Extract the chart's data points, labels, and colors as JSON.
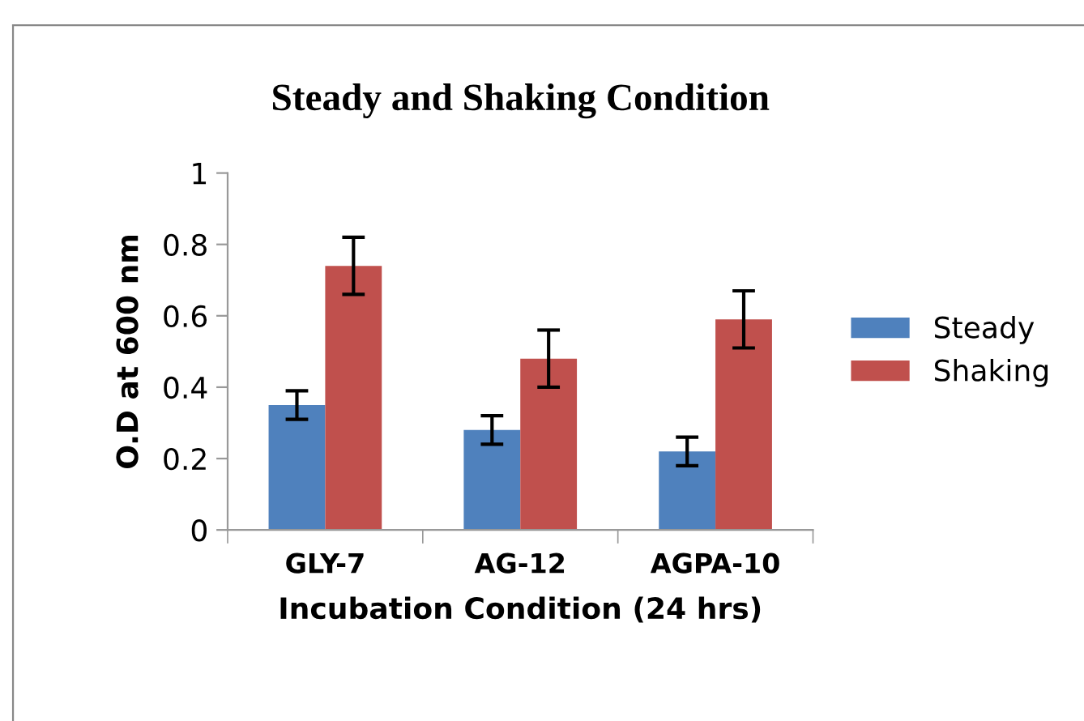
{
  "chart_data": {
    "type": "bar",
    "title": "Steady and Shaking Condition",
    "xlabel": "Incubation Condition (24 hrs)",
    "ylabel": "O.D at 600 nm",
    "categories": [
      "GLY-7",
      "AG-12",
      "AGPA-10"
    ],
    "series": [
      {
        "name": "Steady",
        "color": "#4f81bd",
        "values": [
          0.35,
          0.28,
          0.22
        ],
        "errors": [
          0.04,
          0.04,
          0.04
        ]
      },
      {
        "name": "Shaking",
        "color": "#c0504d",
        "values": [
          0.74,
          0.48,
          0.59
        ],
        "errors": [
          0.08,
          0.08,
          0.08
        ]
      }
    ],
    "ylim": [
      0,
      1
    ],
    "yticks": [
      0,
      0.2,
      0.4,
      0.6,
      0.8,
      1
    ],
    "grid": false,
    "legend": "right"
  }
}
